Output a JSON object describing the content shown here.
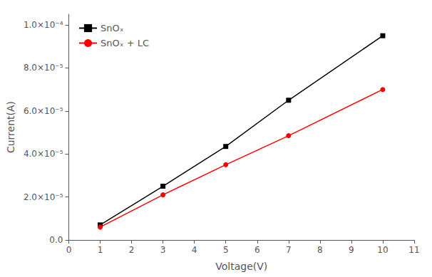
{
  "chart_data": {
    "type": "line",
    "xlabel": "Voltage(V)",
    "ylabel": "Current(A)",
    "x": [
      1,
      3,
      5,
      7,
      10
    ],
    "series": [
      {
        "name": "SnOₓ",
        "color": "#000000",
        "marker": "square",
        "line_style": "solid",
        "values": [
          7e-06,
          2.5e-05,
          4.35e-05,
          6.5e-05,
          9.5e-05
        ]
      },
      {
        "name": "SnOₓ + LC",
        "color": "#ff0000",
        "marker": "circle",
        "line_style": "solid",
        "values": [
          6e-06,
          2.1e-05,
          3.5e-05,
          4.85e-05,
          7e-05
        ]
      }
    ],
    "xlim": [
      0,
      11
    ],
    "xticks": [
      0,
      1,
      2,
      3,
      4,
      5,
      6,
      7,
      8,
      9,
      10,
      11
    ],
    "ylim": [
      0,
      0.000105
    ],
    "yticks": [
      {
        "value": 0.0,
        "label": "0.0"
      },
      {
        "value": 2e-05,
        "label": "2.0×10⁻⁵"
      },
      {
        "value": 4e-05,
        "label": "4.0×10⁻⁵"
      },
      {
        "value": 6e-05,
        "label": "6.0×10⁻⁵"
      },
      {
        "value": 8e-05,
        "label": "8.0×10⁻⁵"
      },
      {
        "value": 0.0001,
        "label": "1.0×10⁻⁴"
      }
    ],
    "grid": false,
    "legend": "upper left"
  }
}
